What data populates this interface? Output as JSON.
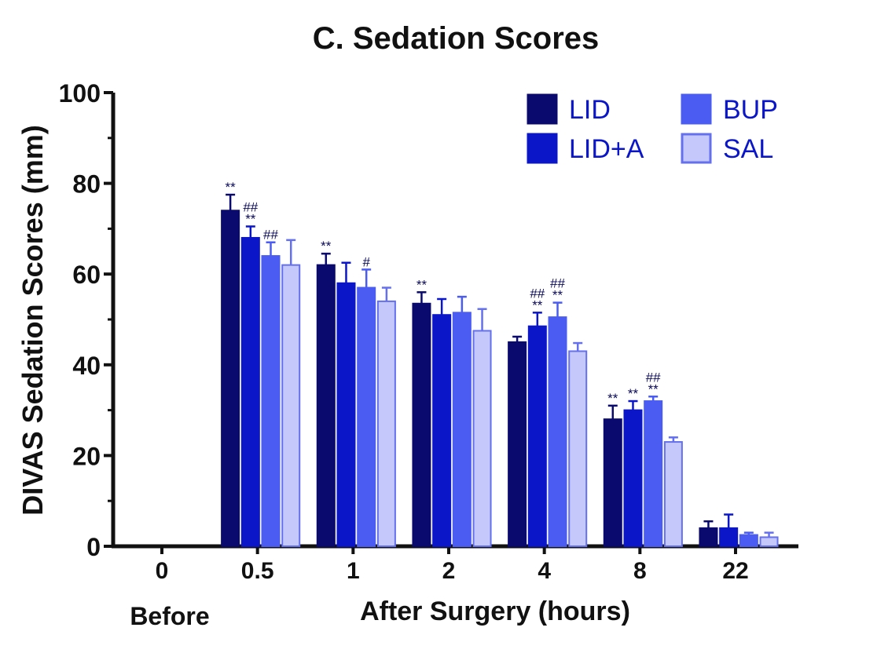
{
  "chart_data": {
    "type": "bar",
    "title": "C. Sedation Scores",
    "ylabel": "DIVAS Sedation Scores (mm)",
    "xlabel": "After Surgery (hours)",
    "before_label": "Before",
    "categories": [
      "0",
      "0.5",
      "1",
      "2",
      "4",
      "8",
      "22"
    ],
    "ylim": [
      0,
      100
    ],
    "yticks": [
      "0",
      "20",
      "40",
      "60",
      "80",
      "100"
    ],
    "grid": false,
    "legend_position": "top-right",
    "series": [
      {
        "name": "LID",
        "color": "#0a0a6e",
        "values": [
          0,
          74,
          62,
          53.5,
          45,
          28,
          4
        ],
        "errors": [
          0,
          3.5,
          2.5,
          2.5,
          1.2,
          3,
          1.5
        ],
        "annotations": [
          "",
          "**",
          "**",
          "**",
          "",
          "**",
          ""
        ]
      },
      {
        "name": "LID+A",
        "color": "#0a16c8",
        "values": [
          0,
          68,
          58,
          51,
          48.5,
          30,
          4
        ],
        "errors": [
          0,
          2.5,
          4.5,
          3.5,
          3,
          2,
          3
        ],
        "annotations": [
          "",
          "##\n**",
          "",
          "",
          "##\n**",
          "**",
          ""
        ]
      },
      {
        "name": "BUP",
        "color": "#4a5cf2",
        "values": [
          0,
          64,
          57,
          51.5,
          50.5,
          32,
          2.5
        ],
        "errors": [
          0,
          3,
          4,
          3.5,
          3.2,
          1,
          0.5
        ],
        "annotations": [
          "",
          "##",
          "#",
          "",
          "##\n**",
          "##\n**",
          ""
        ]
      },
      {
        "name": "SAL",
        "color": "#c4c8fa",
        "edge_color": "#6470ee",
        "values": [
          0,
          62,
          54,
          47.5,
          43,
          23,
          2
        ],
        "errors": [
          0,
          5.5,
          3,
          4.8,
          1.8,
          1,
          1
        ],
        "annotations": [
          "",
          "",
          "",
          "",
          "",
          "",
          ""
        ]
      }
    ]
  }
}
